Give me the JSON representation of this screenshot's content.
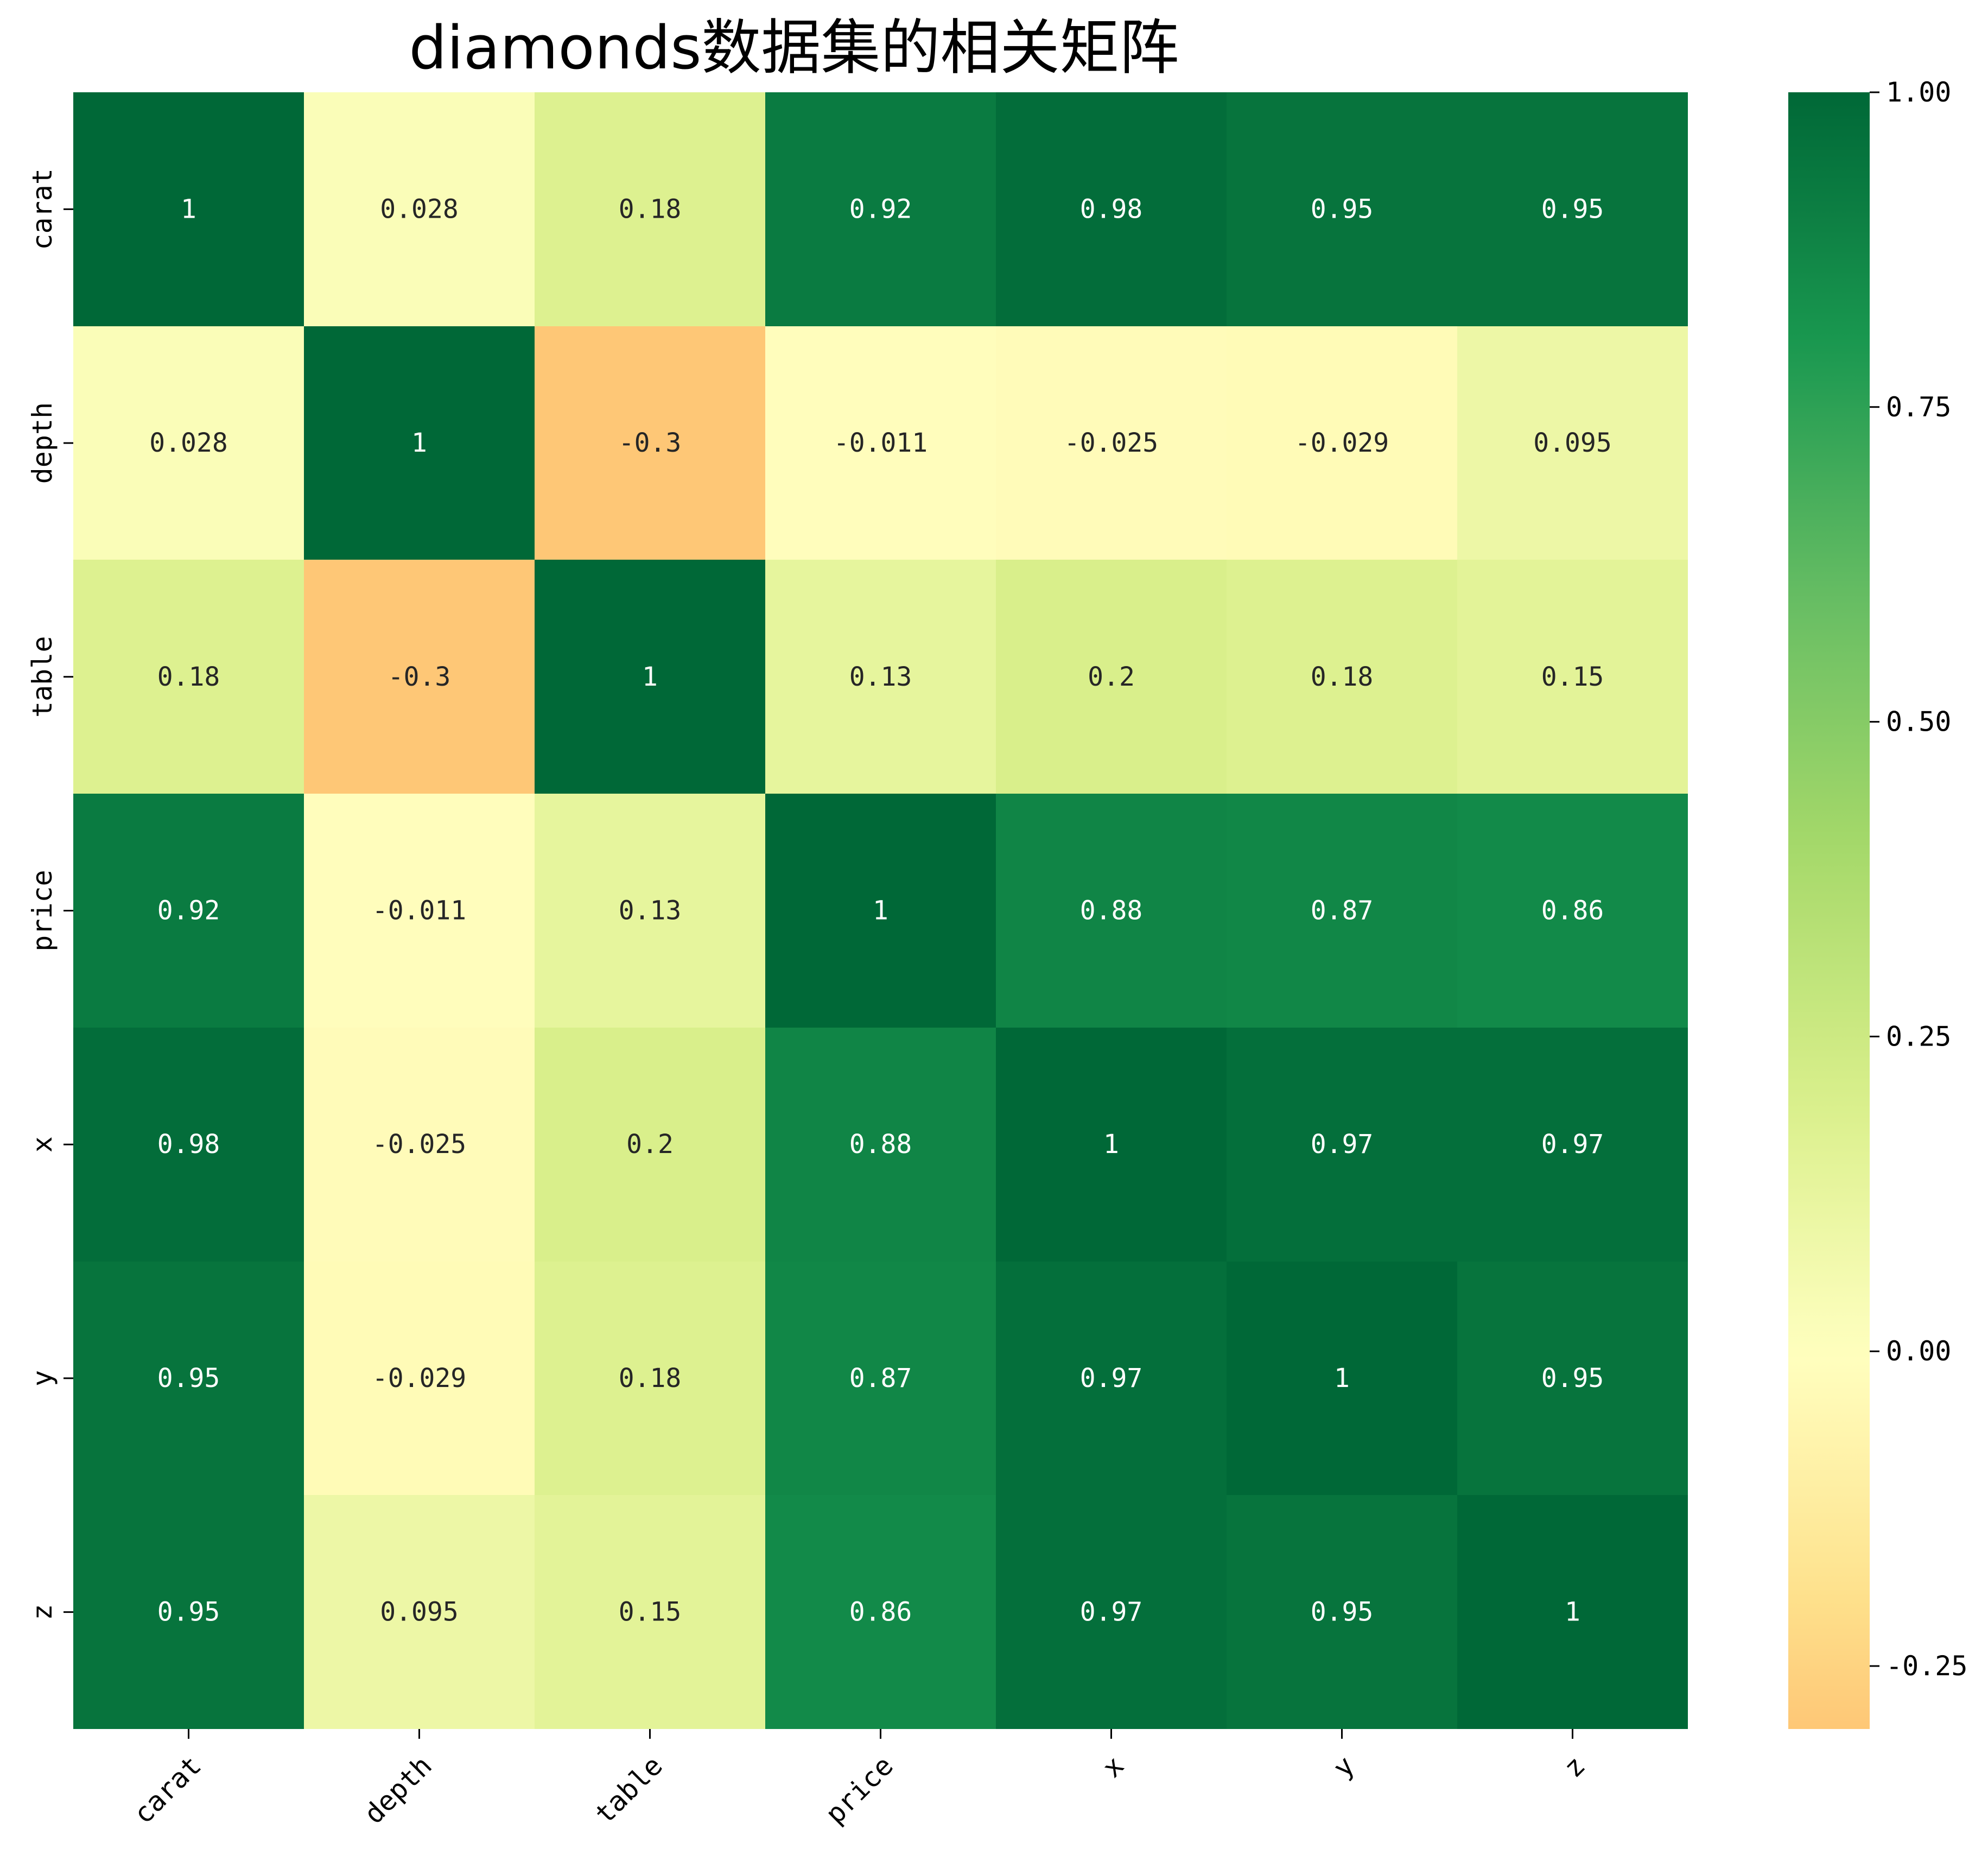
{
  "chart_data": {
    "type": "heatmap",
    "title": "diamonds数据集的相关矩阵",
    "row_labels": [
      "carat",
      "depth",
      "table",
      "price",
      "x",
      "y",
      "z"
    ],
    "col_labels": [
      "carat",
      "depth",
      "table",
      "price",
      "x",
      "y",
      "z"
    ],
    "values": [
      [
        1,
        0.028,
        0.18,
        0.92,
        0.98,
        0.95,
        0.95
      ],
      [
        0.028,
        1,
        -0.3,
        -0.011,
        -0.025,
        -0.029,
        0.095
      ],
      [
        0.18,
        -0.3,
        1,
        0.13,
        0.2,
        0.18,
        0.15
      ],
      [
        0.92,
        -0.011,
        0.13,
        1,
        0.88,
        0.87,
        0.86
      ],
      [
        0.98,
        -0.025,
        0.2,
        0.88,
        1,
        0.97,
        0.97
      ],
      [
        0.95,
        -0.029,
        0.18,
        0.87,
        0.97,
        1,
        0.95
      ],
      [
        0.95,
        0.095,
        0.15,
        0.86,
        0.97,
        0.95,
        1
      ]
    ],
    "annotations": [
      [
        "1",
        "0.028",
        "0.18",
        "0.92",
        "0.98",
        "0.95",
        "0.95"
      ],
      [
        "0.028",
        "1",
        "-0.3",
        "-0.011",
        "-0.025",
        "-0.029",
        "0.095"
      ],
      [
        "0.18",
        "-0.3",
        "1",
        "0.13",
        "0.2",
        "0.18",
        "0.15"
      ],
      [
        "0.92",
        "-0.011",
        "0.13",
        "1",
        "0.88",
        "0.87",
        "0.86"
      ],
      [
        "0.98",
        "-0.025",
        "0.2",
        "0.88",
        "1",
        "0.97",
        "0.97"
      ],
      [
        "0.95",
        "-0.029",
        "0.18",
        "0.87",
        "0.97",
        "1",
        "0.95"
      ],
      [
        "0.95",
        "0.095",
        "0.15",
        "0.86",
        "0.97",
        "0.95",
        "1"
      ]
    ],
    "colormap": "RdYlGn",
    "color_center": 0,
    "vmin": -0.3,
    "vmax": 1,
    "colorbar": {
      "ticks": [
        1,
        0.75,
        0.5,
        0.25,
        0,
        -0.25
      ],
      "tick_labels": [
        "1.00",
        "0.75",
        "0.50",
        "0.25",
        "0.00",
        "-0.25"
      ]
    },
    "xlabel": "",
    "ylabel": "",
    "grid": false,
    "legend": "colorbar-right"
  }
}
